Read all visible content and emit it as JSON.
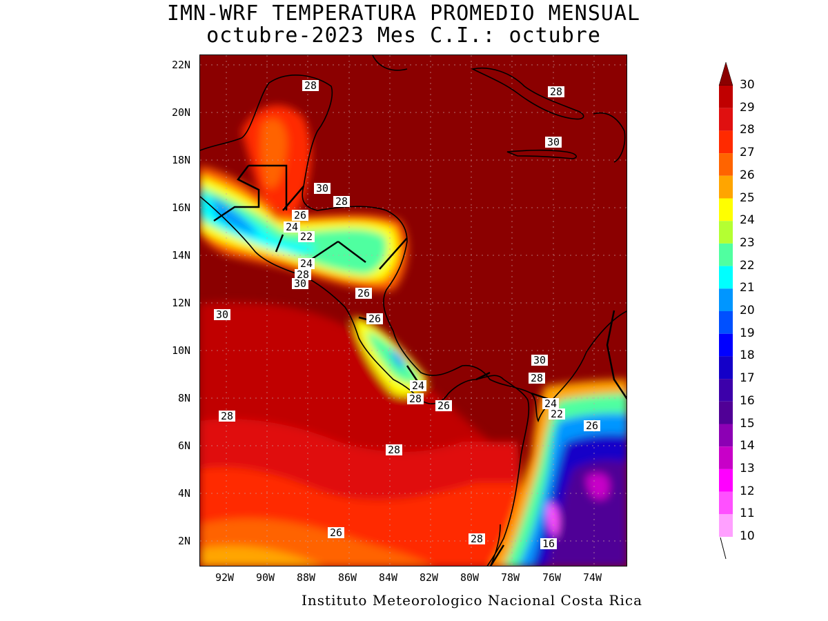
{
  "title_line1": "IMN-WRF  TEMPERATURA PROMEDIO MENSUAL",
  "title_line2": "octubre-2023 Mes C.I.: octubre",
  "credit": "Instituto Meteorologico Nacional Costa Rica",
  "lat_labels": [
    "22N",
    "20N",
    "18N",
    "16N",
    "14N",
    "12N",
    "10N",
    "8N",
    "6N",
    "4N",
    "2N"
  ],
  "lon_labels": [
    "92W",
    "90W",
    "88W",
    "86W",
    "84W",
    "82W",
    "80W",
    "78W",
    "76W",
    "74W"
  ],
  "colorbar": {
    "labels": [
      "30",
      "29",
      "28",
      "27",
      "26",
      "25",
      "24",
      "23",
      "22",
      "21",
      "20",
      "19",
      "18",
      "17",
      "16",
      "15",
      "14",
      "13",
      "12",
      "11",
      "10"
    ],
    "colors": [
      "#8b0000",
      "#c00000",
      "#e01010",
      "#ff2a00",
      "#ff6400",
      "#ffa500",
      "#ffff00",
      "#b4ff32",
      "#50ffa0",
      "#00ffff",
      "#0096ff",
      "#0050ff",
      "#0000ff",
      "#1400c8",
      "#3c00aa",
      "#500096",
      "#8c00b4",
      "#c800c8",
      "#ff00ff",
      "#ff50ff",
      "#ffa0ff"
    ]
  },
  "contour_labels": [
    {
      "text": "28"
    },
    {
      "text": "28"
    },
    {
      "text": "30"
    },
    {
      "text": "30"
    },
    {
      "text": "28"
    },
    {
      "text": "26"
    },
    {
      "text": "24"
    },
    {
      "text": "22"
    },
    {
      "text": "24"
    },
    {
      "text": "28"
    },
    {
      "text": "30"
    },
    {
      "text": "26"
    },
    {
      "text": "30"
    },
    {
      "text": "26"
    },
    {
      "text": "30"
    },
    {
      "text": "28"
    },
    {
      "text": "24"
    },
    {
      "text": "28"
    },
    {
      "text": "26"
    },
    {
      "text": "24"
    },
    {
      "text": "22"
    },
    {
      "text": "26"
    },
    {
      "text": "28"
    },
    {
      "text": "28"
    },
    {
      "text": "26"
    },
    {
      "text": "28"
    },
    {
      "text": "16"
    }
  ]
}
